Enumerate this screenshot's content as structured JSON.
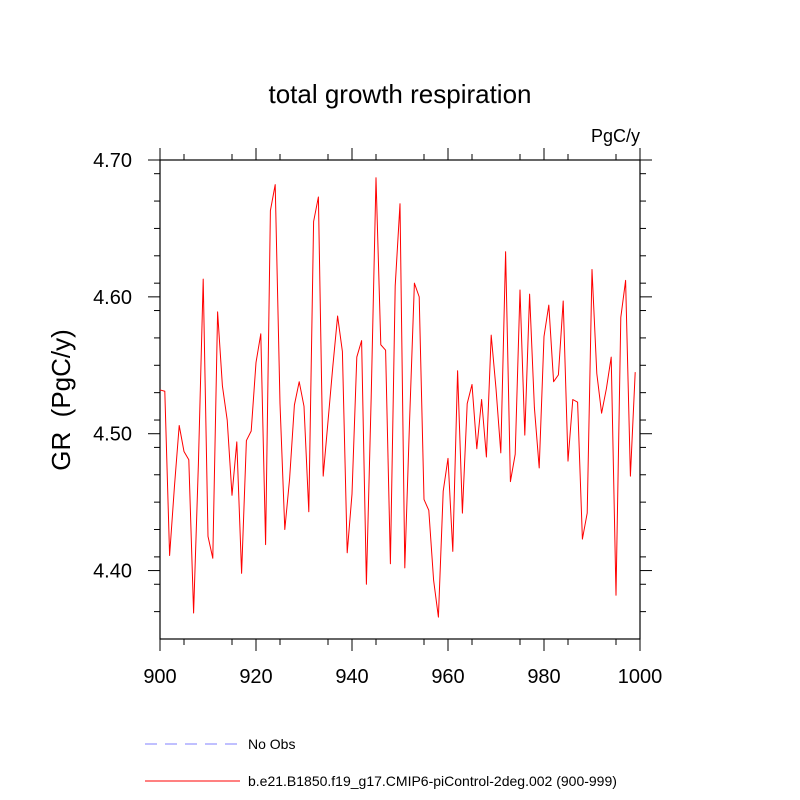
{
  "chart_data": {
    "type": "line",
    "title": "total growth respiration",
    "units_label": "PgC/y",
    "ylabel": "GR  (PgC/y)",
    "xlabel": "",
    "xlim": [
      900,
      1000
    ],
    "ylim": [
      4.35,
      4.7
    ],
    "x_ticks": [
      900,
      920,
      940,
      960,
      980,
      1000
    ],
    "x_tick_labels": [
      "900",
      "920",
      "940",
      "960",
      "980",
      "1000"
    ],
    "y_ticks": [
      4.4,
      4.5,
      4.6,
      4.7
    ],
    "y_tick_labels": [
      "4.40",
      "4.50",
      "4.60",
      "4.70"
    ],
    "legend_position": "bottom",
    "legend": [
      {
        "label": "No Obs",
        "color": "#8080ff",
        "style": "dashed"
      },
      {
        "label": "b.e21.B1850.f19_g17.CMIP6-piControl-2deg.002 (900-999)",
        "color": "#ff0000",
        "style": "solid"
      }
    ],
    "series": [
      {
        "name": "b.e21.B1850.f19_g17.CMIP6-piControl-2deg.002 (900-999)",
        "color": "#ff0000",
        "x_start": 900,
        "x_step": 1,
        "values": [
          4.532,
          4.531,
          4.411,
          4.461,
          4.506,
          4.487,
          4.481,
          4.369,
          4.478,
          4.613,
          4.425,
          4.409,
          4.589,
          4.535,
          4.51,
          4.455,
          4.494,
          4.398,
          4.495,
          4.502,
          4.552,
          4.573,
          4.419,
          4.663,
          4.682,
          4.522,
          4.43,
          4.467,
          4.521,
          4.538,
          4.52,
          4.443,
          4.655,
          4.673,
          4.469,
          4.509,
          4.549,
          4.586,
          4.56,
          4.413,
          4.456,
          4.556,
          4.568,
          4.39,
          4.527,
          4.687,
          4.565,
          4.561,
          4.405,
          4.608,
          4.668,
          4.402,
          4.51,
          4.61,
          4.6,
          4.452,
          4.444,
          4.393,
          4.366,
          4.458,
          4.482,
          4.414,
          4.546,
          4.442,
          4.522,
          4.536,
          4.489,
          4.525,
          4.483,
          4.572,
          4.533,
          4.486,
          4.633,
          4.465,
          4.485,
          4.605,
          4.499,
          4.602,
          4.519,
          4.475,
          4.571,
          4.594,
          4.538,
          4.543,
          4.597,
          4.48,
          4.525,
          4.523,
          4.423,
          4.442,
          4.62,
          4.544,
          4.515,
          4.533,
          4.556,
          4.382,
          4.585,
          4.612,
          4.469,
          4.545
        ]
      }
    ]
  }
}
